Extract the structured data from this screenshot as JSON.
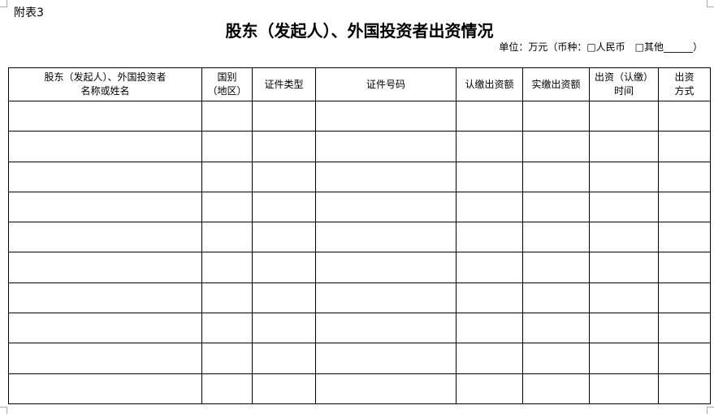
{
  "annex_label": "附表3",
  "title": "股东（发起人）、外国投资者出资情况",
  "unit_note": "单位：万元（币种：□人民币　□其他______）",
  "table": {
    "headers": [
      [
        "股东（发起人）、外国投资者",
        "名称或姓名"
      ],
      [
        "国别",
        "（地区）"
      ],
      [
        "证件类型"
      ],
      [
        "证件号码"
      ],
      [
        "认缴出资额"
      ],
      [
        "实缴出资额"
      ],
      [
        "出资（认缴）",
        "时间"
      ],
      [
        "出资",
        "方式"
      ]
    ],
    "rows": [
      [
        "",
        "",
        "",
        "",
        "",
        "",
        "",
        ""
      ],
      [
        "",
        "",
        "",
        "",
        "",
        "",
        "",
        ""
      ],
      [
        "",
        "",
        "",
        "",
        "",
        "",
        "",
        ""
      ],
      [
        "",
        "",
        "",
        "",
        "",
        "",
        "",
        ""
      ],
      [
        "",
        "",
        "",
        "",
        "",
        "",
        "",
        ""
      ],
      [
        "",
        "",
        "",
        "",
        "",
        "",
        "",
        ""
      ],
      [
        "",
        "",
        "",
        "",
        "",
        "",
        "",
        ""
      ],
      [
        "",
        "",
        "",
        "",
        "",
        "",
        "",
        ""
      ],
      [
        "",
        "",
        "",
        "",
        "",
        "",
        "",
        ""
      ],
      [
        "",
        "",
        "",
        "",
        "",
        "",
        "",
        ""
      ]
    ]
  }
}
